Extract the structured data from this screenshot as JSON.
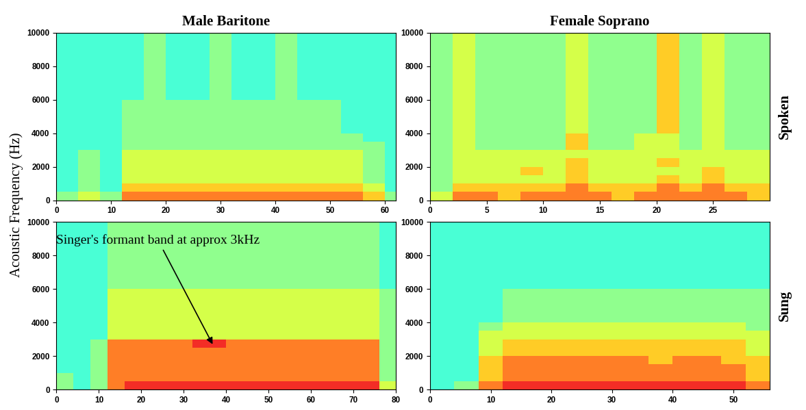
{
  "figure": {
    "ylabel": "Acoustic Frequency (Hz)",
    "rows": [
      "Spoken",
      "Sung"
    ]
  },
  "chart_data": [
    {
      "type": "heatmap",
      "title": "Male Baritone",
      "color": "jet",
      "color_range": [
        0,
        10
      ],
      "x_edges": [
        0,
        4,
        8,
        12,
        16,
        20,
        24,
        28,
        32,
        36,
        40,
        44,
        48,
        52,
        56,
        60,
        62
      ],
      "y_edges": [
        0,
        500,
        1000,
        1500,
        2000,
        2500,
        3000,
        3500,
        4000,
        6000,
        10000
      ],
      "cells": [
        [
          5,
          6,
          5,
          8,
          8,
          8,
          8,
          8,
          8,
          8,
          8,
          8,
          8,
          8,
          7,
          5
        ],
        [
          4,
          5,
          4,
          7,
          7,
          7,
          7,
          7,
          7,
          7,
          7,
          7,
          7,
          7,
          6,
          4
        ],
        [
          4,
          5,
          4,
          6,
          6,
          6,
          6,
          6,
          6,
          6,
          6,
          6,
          6,
          6,
          5,
          4
        ],
        [
          4,
          5,
          4,
          6,
          6,
          6,
          6,
          6,
          6,
          6,
          6,
          6,
          6,
          6,
          5,
          4
        ],
        [
          4,
          5,
          4,
          6,
          6,
          6,
          6,
          6,
          6,
          6,
          6,
          6,
          6,
          6,
          5,
          4
        ],
        [
          4,
          5,
          4,
          6,
          6,
          6,
          6,
          6,
          6,
          6,
          6,
          6,
          6,
          6,
          5,
          4
        ],
        [
          4,
          4,
          4,
          5,
          5,
          5,
          5,
          5,
          5,
          5,
          5,
          5,
          5,
          5,
          5,
          4
        ],
        [
          4,
          4,
          4,
          5,
          5,
          5,
          5,
          5,
          5,
          5,
          5,
          5,
          5,
          5,
          4,
          4
        ],
        [
          4,
          4,
          4,
          5,
          5,
          5,
          5,
          5,
          5,
          5,
          5,
          5,
          5,
          4,
          4,
          4
        ],
        [
          4,
          4,
          4,
          4,
          5,
          4,
          4,
          5,
          4,
          4,
          5,
          4,
          4,
          4,
          4,
          4
        ]
      ],
      "xlim": [
        0,
        62
      ],
      "xticks": [
        0,
        10,
        20,
        30,
        40,
        50,
        60
      ],
      "ylim": [
        0,
        10000
      ],
      "yticks": [
        0,
        2000,
        4000,
        6000,
        8000,
        10000
      ]
    },
    {
      "type": "heatmap",
      "title": "Female Soprano",
      "color": "jet",
      "color_range": [
        0,
        10
      ],
      "x_edges": [
        0,
        2,
        4,
        6,
        8,
        10,
        12,
        14,
        16,
        18,
        20,
        22,
        24,
        26,
        28,
        30
      ],
      "y_edges": [
        0,
        500,
        1000,
        1500,
        2000,
        2500,
        3000,
        3500,
        4000,
        6000,
        10000
      ],
      "cells": [
        [
          6,
          8,
          8,
          7,
          8,
          8,
          8,
          8,
          7,
          8,
          8,
          8,
          8,
          8,
          7
        ],
        [
          5,
          7,
          7,
          7,
          7,
          7,
          8,
          7,
          7,
          7,
          8,
          7,
          8,
          7,
          7
        ],
        [
          5,
          6,
          6,
          6,
          6,
          6,
          7,
          6,
          6,
          6,
          7,
          6,
          7,
          6,
          6
        ],
        [
          5,
          6,
          6,
          6,
          7,
          6,
          7,
          6,
          6,
          6,
          6,
          6,
          7,
          6,
          6
        ],
        [
          5,
          6,
          6,
          6,
          6,
          6,
          7,
          6,
          6,
          6,
          7,
          6,
          6,
          6,
          6
        ],
        [
          5,
          6,
          6,
          6,
          6,
          6,
          6,
          6,
          6,
          6,
          6,
          6,
          6,
          6,
          6
        ],
        [
          5,
          6,
          5,
          5,
          5,
          5,
          7,
          5,
          5,
          6,
          6,
          5,
          6,
          5,
          5
        ],
        [
          5,
          6,
          5,
          5,
          5,
          5,
          7,
          5,
          5,
          6,
          6,
          5,
          6,
          5,
          5
        ],
        [
          5,
          6,
          5,
          5,
          5,
          5,
          6,
          5,
          5,
          5,
          7,
          5,
          6,
          5,
          5
        ],
        [
          5,
          6,
          5,
          5,
          5,
          5,
          6,
          5,
          5,
          5,
          7,
          5,
          6,
          5,
          5
        ]
      ],
      "xlim": [
        0,
        30
      ],
      "xticks": [
        0,
        5,
        10,
        15,
        20,
        25
      ],
      "ylim": [
        0,
        10000
      ],
      "yticks": [
        0,
        2000,
        4000,
        6000,
        8000,
        10000
      ]
    },
    {
      "type": "heatmap",
      "color": "jet",
      "color_range": [
        0,
        10
      ],
      "x_edges": [
        0,
        4,
        8,
        12,
        16,
        20,
        24,
        28,
        32,
        36,
        40,
        44,
        48,
        52,
        56,
        60,
        64,
        68,
        72,
        76,
        80
      ],
      "y_edges": [
        0,
        500,
        1000,
        1500,
        2000,
        2500,
        3000,
        3500,
        4000,
        6000,
        10000
      ],
      "cells": [
        [
          5,
          4,
          5,
          8,
          9,
          9,
          9,
          9,
          9,
          9,
          9,
          9,
          9,
          9,
          9,
          9,
          9,
          9,
          9,
          6
        ],
        [
          5,
          4,
          5,
          8,
          8,
          8,
          8,
          8,
          8,
          8,
          8,
          8,
          8,
          8,
          8,
          8,
          8,
          8,
          8,
          5
        ],
        [
          4,
          4,
          5,
          8,
          8,
          8,
          8,
          8,
          8,
          8,
          8,
          8,
          8,
          8,
          8,
          8,
          8,
          8,
          8,
          5
        ],
        [
          4,
          4,
          5,
          8,
          8,
          8,
          8,
          8,
          8,
          8,
          8,
          8,
          8,
          8,
          8,
          8,
          8,
          8,
          8,
          5
        ],
        [
          4,
          4,
          5,
          8,
          8,
          8,
          8,
          8,
          8,
          8,
          8,
          8,
          8,
          8,
          8,
          8,
          8,
          8,
          8,
          5
        ],
        [
          4,
          4,
          5,
          8,
          8,
          8,
          8,
          8,
          9,
          9,
          8,
          8,
          8,
          8,
          8,
          8,
          8,
          8,
          8,
          5
        ],
        [
          4,
          4,
          4,
          6,
          6,
          6,
          6,
          6,
          6,
          6,
          6,
          6,
          6,
          6,
          6,
          6,
          6,
          6,
          6,
          5
        ],
        [
          4,
          4,
          4,
          6,
          6,
          6,
          6,
          6,
          6,
          6,
          6,
          6,
          6,
          6,
          6,
          6,
          6,
          6,
          6,
          5
        ],
        [
          4,
          4,
          4,
          6,
          6,
          6,
          6,
          6,
          6,
          6,
          6,
          6,
          6,
          6,
          6,
          6,
          6,
          6,
          6,
          5
        ],
        [
          4,
          4,
          4,
          5,
          5,
          5,
          5,
          5,
          5,
          5,
          5,
          5,
          5,
          5,
          5,
          5,
          5,
          5,
          5,
          4
        ]
      ],
      "xlim": [
        0,
        80
      ],
      "xticks": [
        0,
        10,
        20,
        30,
        40,
        50,
        60,
        70,
        80
      ],
      "ylim": [
        0,
        10000
      ],
      "yticks": [
        0,
        2000,
        4000,
        6000,
        8000,
        10000
      ],
      "annotation": {
        "text": "Singer's formant band at approx 3kHz",
        "x": 37,
        "y": 2600
      }
    },
    {
      "type": "heatmap",
      "color": "jet",
      "color_range": [
        0,
        10
      ],
      "x_edges": [
        0,
        4,
        8,
        12,
        16,
        20,
        24,
        28,
        32,
        36,
        40,
        44,
        48,
        52,
        56
      ],
      "y_edges": [
        0,
        500,
        1000,
        1500,
        2000,
        2500,
        3000,
        3500,
        4000,
        6000,
        10000
      ],
      "cells": [
        [
          4,
          5,
          8,
          9,
          9,
          9,
          9,
          9,
          9,
          9,
          9,
          9,
          9,
          8
        ],
        [
          4,
          4,
          7,
          8,
          8,
          8,
          8,
          8,
          8,
          8,
          8,
          8,
          8,
          7
        ],
        [
          4,
          4,
          7,
          8,
          8,
          8,
          8,
          8,
          8,
          8,
          8,
          8,
          8,
          7
        ],
        [
          4,
          4,
          7,
          8,
          8,
          8,
          8,
          8,
          8,
          7,
          8,
          8,
          7,
          7
        ],
        [
          4,
          4,
          6,
          7,
          7,
          7,
          7,
          7,
          7,
          7,
          7,
          7,
          7,
          6
        ],
        [
          4,
          4,
          6,
          7,
          7,
          7,
          7,
          7,
          7,
          7,
          7,
          7,
          7,
          6
        ],
        [
          4,
          4,
          6,
          6,
          6,
          6,
          6,
          6,
          6,
          6,
          6,
          6,
          6,
          6
        ],
        [
          4,
          4,
          5,
          6,
          6,
          6,
          6,
          6,
          6,
          6,
          6,
          6,
          6,
          5
        ],
        [
          4,
          4,
          4,
          5,
          5,
          5,
          5,
          5,
          5,
          5,
          5,
          5,
          5,
          5
        ],
        [
          4,
          4,
          4,
          4,
          4,
          4,
          4,
          4,
          4,
          4,
          4,
          4,
          4,
          4
        ]
      ],
      "xlim": [
        0,
        56
      ],
      "xticks": [
        0,
        10,
        20,
        30,
        40,
        50
      ],
      "ylim": [
        0,
        10000
      ],
      "yticks": [
        0,
        2000,
        4000,
        6000,
        8000,
        10000
      ]
    }
  ]
}
